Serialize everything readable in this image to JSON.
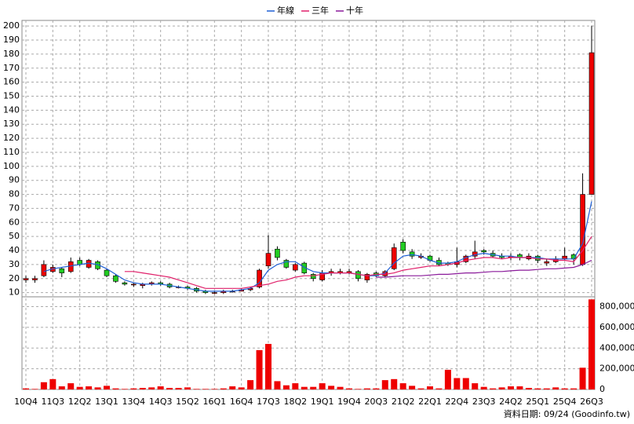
{
  "chart_data": {
    "type": "candlestick",
    "categories": [
      "10Q4",
      null,
      null,
      "11Q3",
      null,
      null,
      "12Q2",
      null,
      null,
      "13Q1",
      null,
      null,
      "13Q4",
      null,
      null,
      "14Q3",
      null,
      null,
      "15Q2",
      null,
      null,
      "16Q1",
      null,
      null,
      "16Q4",
      null,
      null,
      "17Q3",
      null,
      null,
      "18Q2",
      null,
      null,
      "19Q1",
      null,
      null,
      "19Q4",
      null,
      null,
      "20Q3",
      null,
      null,
      "21Q2",
      null,
      null,
      "22Q1",
      null,
      null,
      "22Q4",
      null,
      null,
      "23Q3",
      null,
      null,
      "24Q2",
      null,
      null,
      "25Q1",
      null,
      null,
      "25Q4",
      null,
      null,
      "26Q3"
    ],
    "open": [
      19,
      19,
      22,
      25,
      27,
      25,
      33,
      28,
      32,
      26,
      22,
      17,
      16,
      15,
      16,
      17,
      16,
      14,
      14,
      13,
      11,
      10,
      10,
      11,
      11,
      12,
      14,
      29,
      41,
      33,
      26,
      31,
      23,
      19,
      24,
      24,
      24,
      25,
      19,
      24,
      22,
      27,
      46,
      39,
      35,
      36,
      33,
      31,
      30,
      32,
      36,
      40,
      38,
      36,
      35,
      37,
      34,
      36,
      31,
      32,
      34,
      37,
      30,
      80
    ],
    "high": [
      22,
      22,
      33,
      30,
      28,
      35,
      35,
      34,
      33,
      27,
      23,
      18,
      17,
      17,
      18,
      18,
      17,
      15,
      15,
      14,
      12,
      11,
      12,
      12,
      13,
      14,
      27,
      51,
      43,
      34,
      31,
      32,
      24,
      26,
      27,
      27,
      27,
      26,
      24,
      25,
      26,
      45,
      48,
      41,
      38,
      37,
      35,
      32,
      42,
      37,
      47,
      41,
      40,
      38,
      38,
      38,
      38,
      37,
      34,
      36,
      42,
      38,
      95,
      200
    ],
    "low": [
      17,
      17,
      21,
      24,
      21,
      24,
      29,
      27,
      26,
      21,
      17,
      15,
      14,
      13,
      15,
      15,
      13,
      13,
      12,
      10,
      9,
      9,
      9,
      10,
      11,
      11,
      13,
      27,
      33,
      27,
      25,
      23,
      18,
      18,
      22,
      23,
      23,
      18,
      17,
      21,
      21,
      26,
      38,
      34,
      34,
      32,
      29,
      29,
      28,
      31,
      34,
      37,
      35,
      34,
      33,
      33,
      33,
      31,
      29,
      31,
      33,
      30,
      29,
      80
    ],
    "close": [
      20,
      20,
      30,
      28,
      24,
      32,
      30,
      33,
      27,
      22,
      18,
      16,
      16,
      16,
      17,
      16,
      14,
      14,
      13,
      11,
      10,
      10,
      11,
      11,
      12,
      13,
      26,
      38,
      35,
      28,
      30,
      24,
      20,
      24,
      25,
      25,
      25,
      20,
      23,
      22,
      25,
      42,
      40,
      36,
      36,
      33,
      30,
      30,
      32,
      36,
      39,
      39,
      36,
      35,
      36,
      35,
      36,
      33,
      32,
      34,
      36,
      34,
      80,
      181
    ],
    "up_color": "#ee0000",
    "down_color": "#22cc22",
    "lines": [
      {
        "name": "年線",
        "color": "#1e5fd6",
        "values": [
          null,
          null,
          25,
          27,
          28,
          29,
          30,
          31,
          30,
          27,
          23,
          19,
          17,
          16,
          16,
          16,
          15,
          14,
          13,
          12,
          11,
          11,
          11,
          11,
          12,
          13,
          17,
          26,
          30,
          32,
          32,
          28,
          25,
          24,
          24,
          24,
          24,
          23,
          22,
          22,
          24,
          31,
          36,
          37,
          36,
          33,
          31,
          31,
          32,
          35,
          37,
          38,
          37,
          36,
          36,
          35,
          35,
          35,
          34,
          34,
          34,
          34,
          45,
          75
        ]
      },
      {
        "name": "三年",
        "color": "#e0206a",
        "values": [
          null,
          null,
          null,
          null,
          null,
          null,
          null,
          null,
          null,
          null,
          null,
          25,
          25,
          24,
          23,
          22,
          21,
          19,
          17,
          15,
          13,
          13,
          13,
          13,
          13,
          14,
          15,
          16,
          18,
          19,
          21,
          22,
          22,
          23,
          24,
          24,
          24,
          23,
          22,
          23,
          23,
          24,
          26,
          27,
          28,
          29,
          29,
          30,
          31,
          33,
          34,
          35,
          35,
          34,
          35,
          35,
          35,
          34,
          34,
          33,
          33,
          32,
          40,
          50
        ]
      },
      {
        "name": "十年",
        "color": "#8a1a9a",
        "values": [
          null,
          null,
          null,
          null,
          null,
          null,
          null,
          null,
          null,
          null,
          null,
          null,
          null,
          null,
          null,
          null,
          null,
          null,
          null,
          null,
          null,
          null,
          null,
          null,
          null,
          null,
          null,
          null,
          null,
          null,
          null,
          null,
          null,
          null,
          null,
          null,
          null,
          null,
          null,
          21,
          21,
          21.5,
          22,
          22,
          22,
          22.5,
          23,
          23,
          23.5,
          24,
          24,
          24.5,
          25,
          25,
          25.5,
          26,
          26,
          26.5,
          27,
          27,
          27.5,
          28,
          30,
          33
        ]
      }
    ],
    "ylim": [
      7,
      204
    ],
    "yticks": [
      10,
      20,
      30,
      40,
      50,
      60,
      70,
      80,
      90,
      100,
      110,
      120,
      130,
      140,
      150,
      160,
      170,
      180,
      190,
      200
    ],
    "grid": true,
    "volume": {
      "color": "#ee0000",
      "values": [
        10000,
        5000,
        70000,
        100000,
        30000,
        60000,
        25000,
        30000,
        20000,
        35000,
        10000,
        5000,
        10000,
        15000,
        20000,
        30000,
        15000,
        15000,
        20000,
        5000,
        5000,
        5000,
        10000,
        30000,
        20000,
        90000,
        380000,
        440000,
        80000,
        40000,
        60000,
        25000,
        25000,
        60000,
        35000,
        25000,
        10000,
        5000,
        10000,
        10000,
        90000,
        100000,
        60000,
        35000,
        10000,
        30000,
        10000,
        190000,
        110000,
        110000,
        60000,
        25000,
        10000,
        20000,
        30000,
        30000,
        15000,
        10000,
        10000,
        20000,
        10000,
        10000,
        210000,
        870000
      ],
      "ylim": [
        0,
        880000
      ],
      "yticks": [
        0,
        {
          "value": 200000,
          "label": "200,000"
        },
        {
          "value": 400000,
          "label": "400,000"
        },
        {
          "value": 600000,
          "label": "600,000"
        },
        {
          "value": 800000,
          "label": "800,000"
        }
      ]
    },
    "footer": "資料日期: 09/24   (Goodinfo.tw)"
  }
}
